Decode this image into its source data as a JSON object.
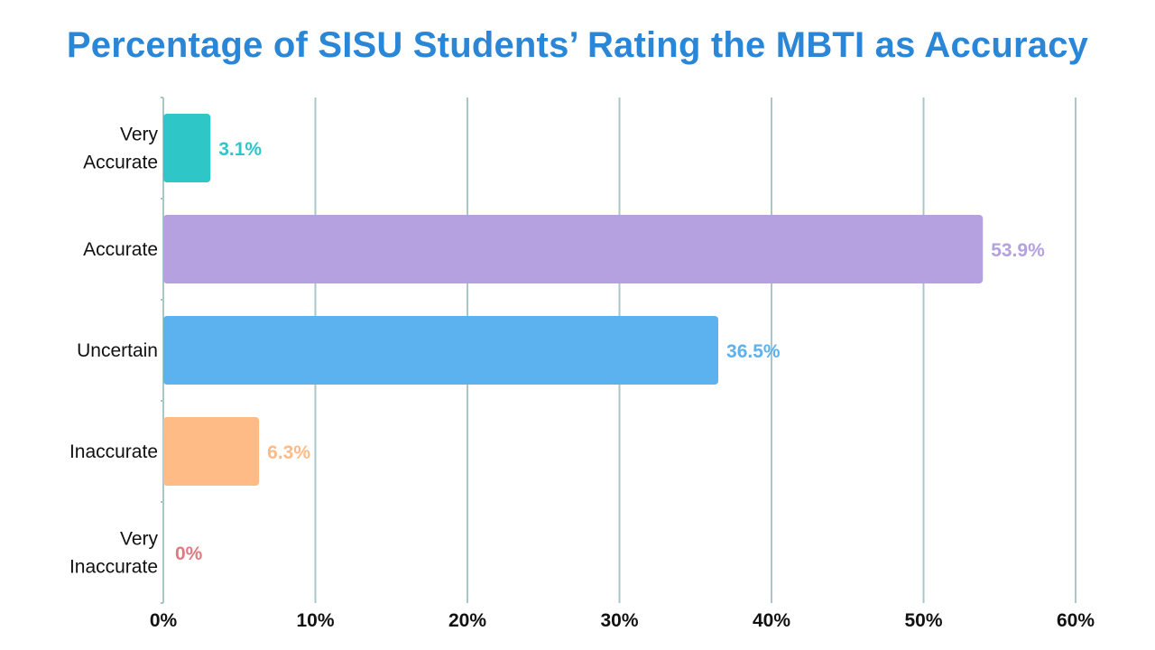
{
  "chart_data": {
    "type": "bar",
    "orientation": "horizontal",
    "title": "Percentage of SISU Students’ Rating the MBTI as Accuracy",
    "categories": [
      [
        "Very",
        "Accurate"
      ],
      [
        "Accurate"
      ],
      [
        "Uncertain"
      ],
      [
        "Inaccurate"
      ],
      [
        "Very",
        "Inaccurate"
      ]
    ],
    "values": [
      3.1,
      53.9,
      36.5,
      6.3,
      0
    ],
    "value_labels": [
      "3.1%",
      "53.9%",
      "36.5%",
      "6.3%",
      "0%"
    ],
    "colors": [
      "#2ec6c6",
      "#b5a1e0",
      "#5cb2ee",
      "#ffbb85",
      "#e07a80"
    ],
    "xlim": [
      0,
      60
    ],
    "x_ticks": [
      0,
      10,
      20,
      30,
      40,
      50,
      60
    ],
    "x_tick_labels": [
      "0%",
      "10%",
      "20%",
      "30%",
      "40%",
      "50%",
      "60%"
    ],
    "grid": true,
    "gridline_color": "#a9c7c7",
    "legend": false
  }
}
